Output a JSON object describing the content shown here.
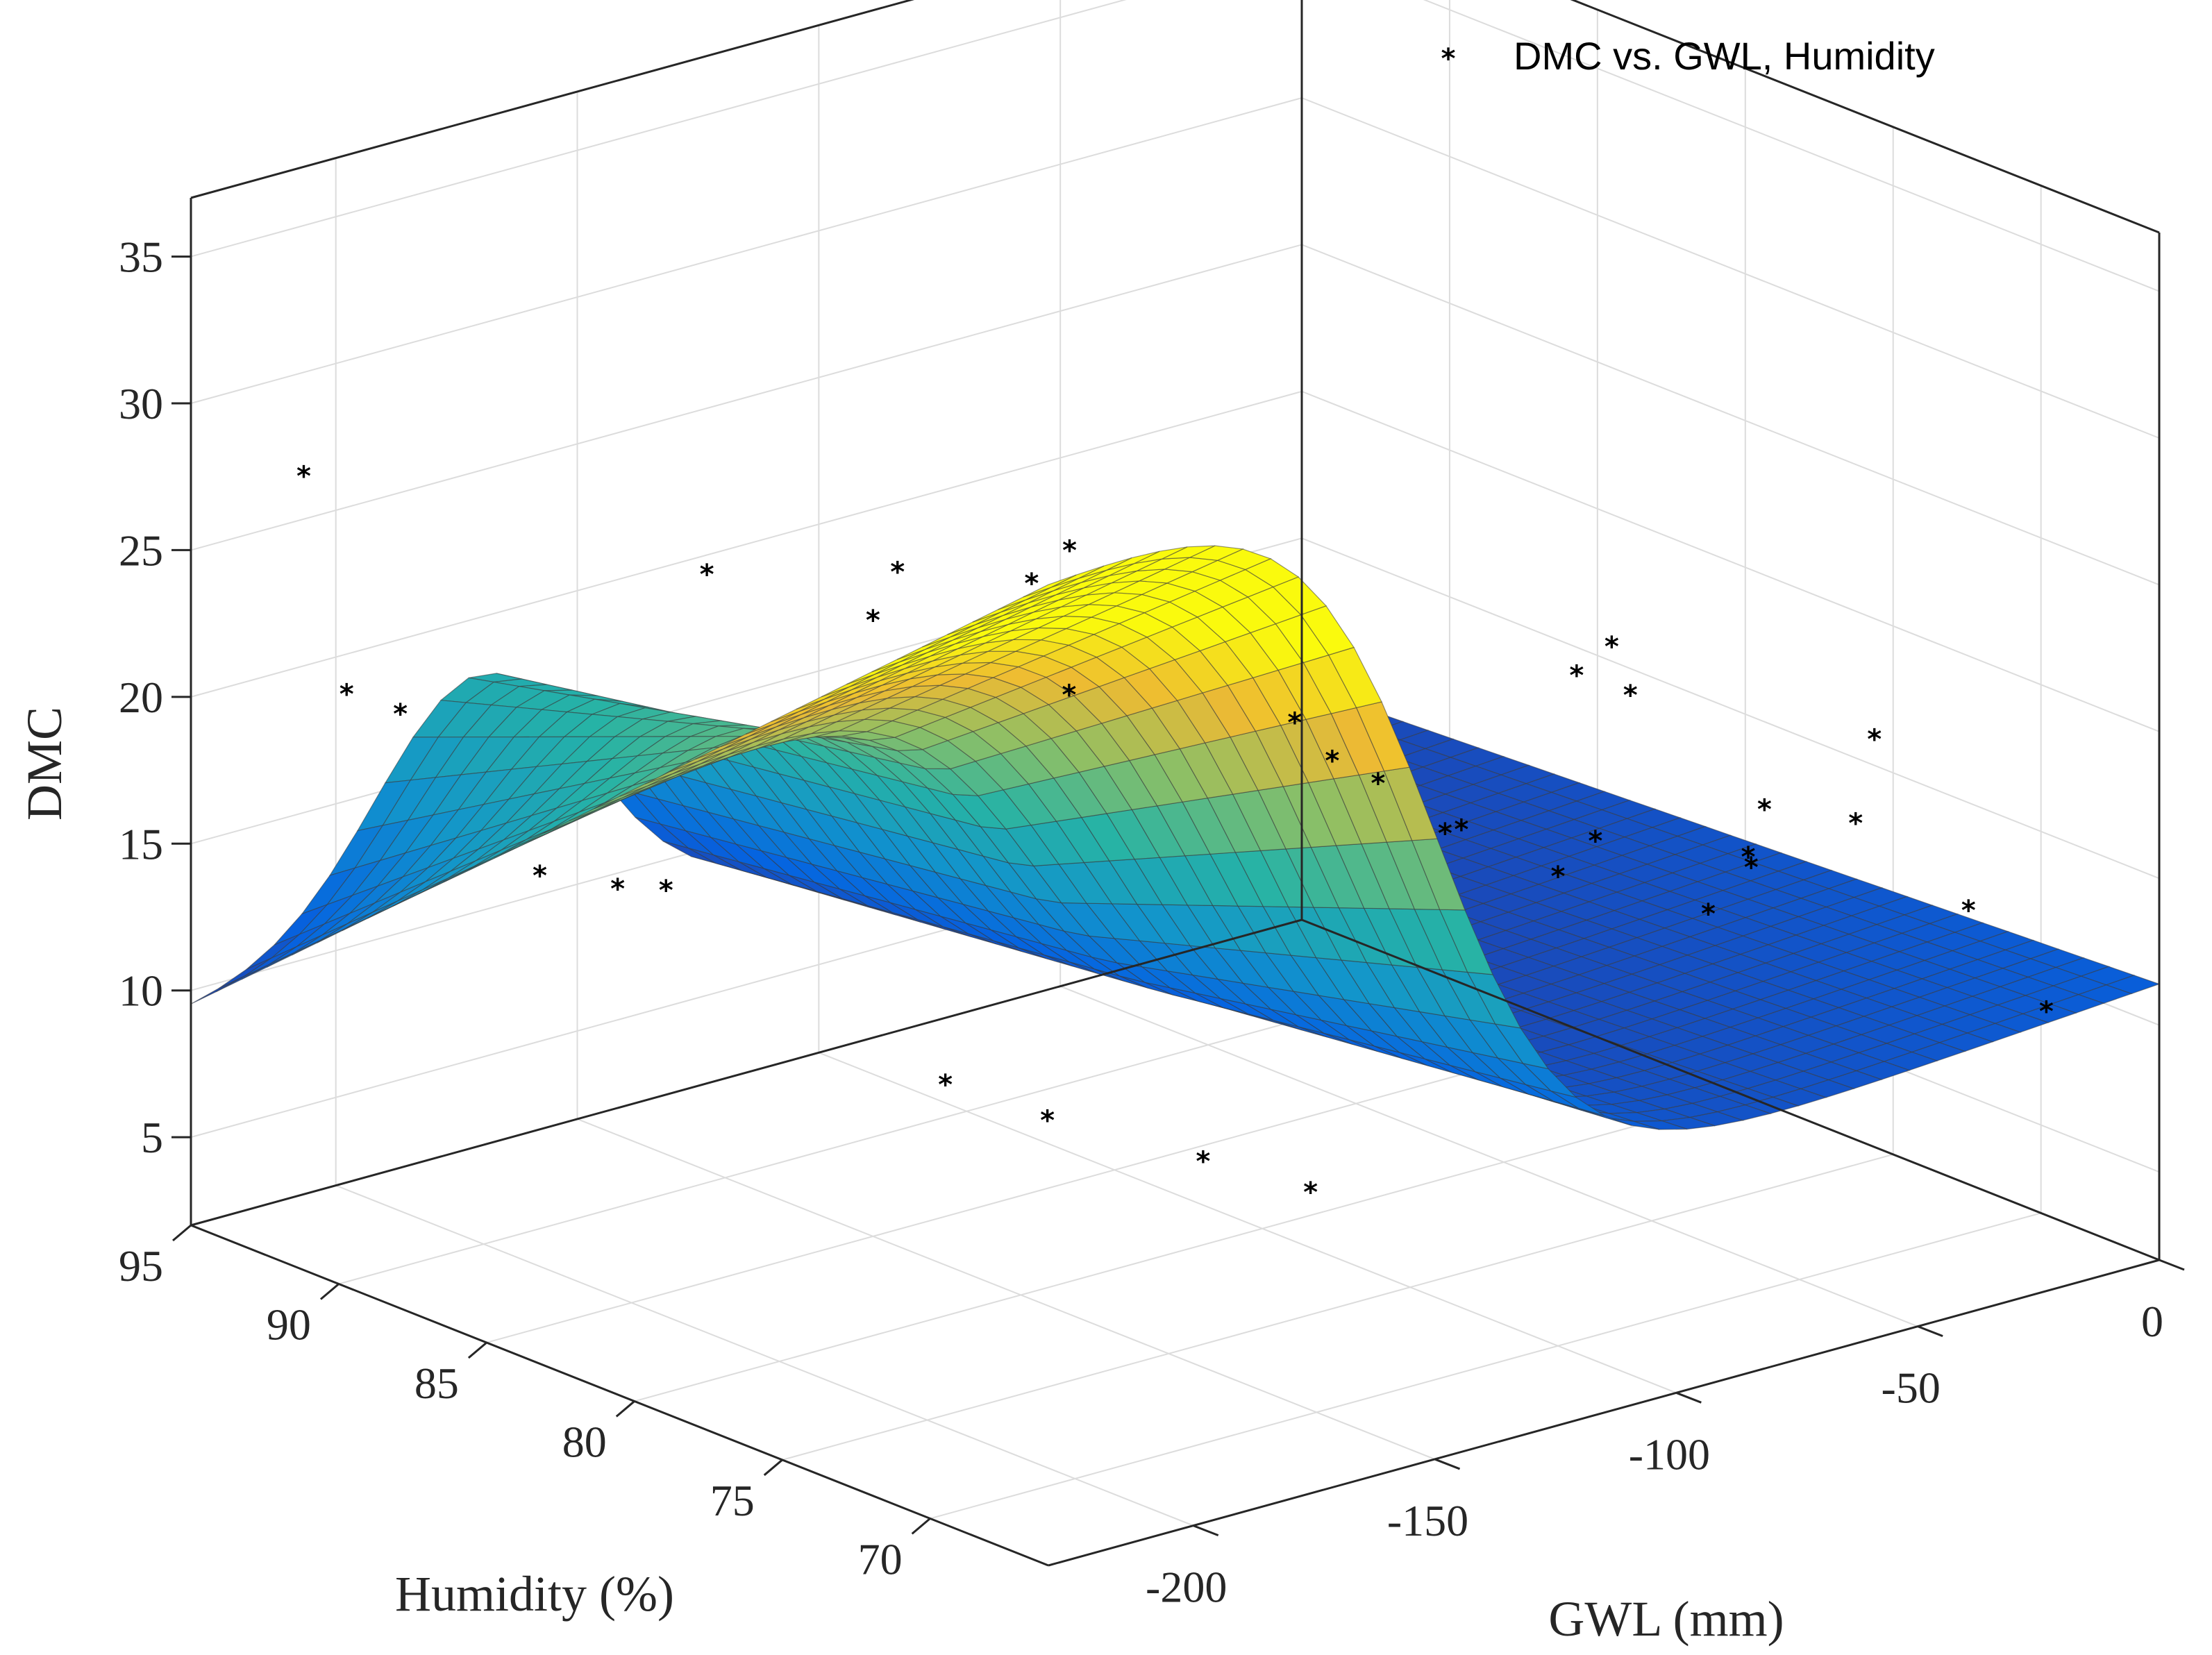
{
  "chart_data": {
    "type": "surface3d",
    "title": "",
    "xlabel": "GWL (mm)",
    "ylabel": "Humidity (%)",
    "zlabel": "DMC",
    "xlim": [
      -230,
      0
    ],
    "ylim": [
      66,
      95
    ],
    "zlim": [
      2,
      37
    ],
    "xticks": [
      -200,
      -150,
      -100,
      -50,
      0
    ],
    "yticks": [
      70,
      75,
      80,
      85,
      90,
      95
    ],
    "zticks": [
      5,
      10,
      15,
      20,
      25,
      30,
      35
    ],
    "legend": {
      "label": "DMC vs. GWL, Humidity",
      "marker": "*",
      "position": "top-right"
    },
    "surface": {
      "model": "tanh-step",
      "description": "DMC rises sharply near GWL ~ -60 mm on the dry side and falls with humidity",
      "x_range": [
        -230,
        0
      ],
      "y_range": [
        66,
        95
      ],
      "grid_size": [
        40,
        34
      ]
    },
    "points": [
      {
        "gwl": -225,
        "hum": 92,
        "dmc": 28.5
      },
      {
        "gwl": -215,
        "hum": 80,
        "dmc": 29.5
      },
      {
        "gwl": -200,
        "hum": 76,
        "dmc": 30.5
      },
      {
        "gwl": -195,
        "hum": 71,
        "dmc": 33.0
      },
      {
        "gwl": -160,
        "hum": 78,
        "dmc": 27.5
      },
      {
        "gwl": -150,
        "hum": 85,
        "dmc": 23.0
      },
      {
        "gwl": -140,
        "hum": 80,
        "dmc": 22.0
      },
      {
        "gwl": -130,
        "hum": 74,
        "dmc": 23.0
      },
      {
        "gwl": -125,
        "hum": 72,
        "dmc": 21.5
      },
      {
        "gwl": -120,
        "hum": 70,
        "dmc": 20.5
      },
      {
        "gwl": -110,
        "hum": 76,
        "dmc": 20.0
      },
      {
        "gwl": -105,
        "hum": 73,
        "dmc": 18.5
      },
      {
        "gwl": -100,
        "hum": 70,
        "dmc": 18.0
      },
      {
        "gwl": -95,
        "hum": 69,
        "dmc": 26.0
      },
      {
        "gwl": -90,
        "hum": 71,
        "dmc": 24.0
      },
      {
        "gwl": -85,
        "hum": 70,
        "dmc": 23.5
      },
      {
        "gwl": -80,
        "hum": 72,
        "dmc": 17.5
      },
      {
        "gwl": -75,
        "hum": 69,
        "dmc": 16.0
      },
      {
        "gwl": -60,
        "hum": 70,
        "dmc": 16.5
      },
      {
        "gwl": -45,
        "hum": 72,
        "dmc": 17.0
      },
      {
        "gwl": -30,
        "hum": 75,
        "dmc": 13.5
      },
      {
        "gwl": -20,
        "hum": 73,
        "dmc": 15.0
      },
      {
        "gwl": -10,
        "hum": 74,
        "dmc": 17.0
      },
      {
        "gwl": -15,
        "hum": 70,
        "dmc": 13.0
      },
      {
        "gwl": -5,
        "hum": 69,
        "dmc": 9.5
      },
      {
        "gwl": -210,
        "hum": 93,
        "dmc": 20.0
      },
      {
        "gwl": -205,
        "hum": 92,
        "dmc": 19.5
      },
      {
        "gwl": -170,
        "hum": 93,
        "dmc": 12.0
      },
      {
        "gwl": -160,
        "hum": 92,
        "dmc": 11.5
      },
      {
        "gwl": -150,
        "hum": 92,
        "dmc": 11.0
      },
      {
        "gwl": -135,
        "hum": 85,
        "dmc": 6.5
      },
      {
        "gwl": -120,
        "hum": 84,
        "dmc": 5.0
      },
      {
        "gwl": -100,
        "hum": 82,
        "dmc": 3.5
      },
      {
        "gwl": -90,
        "hum": 80,
        "dmc": 2.8
      }
    ]
  }
}
